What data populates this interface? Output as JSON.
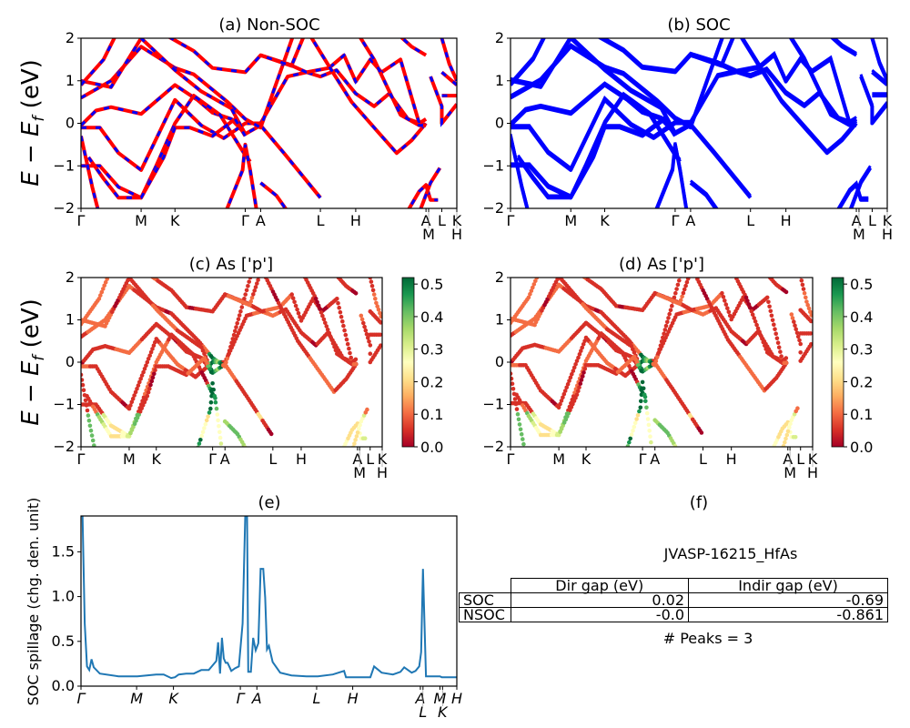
{
  "chart_data": [
    {
      "id": "a",
      "type": "line",
      "title": "(a) Non-SOC",
      "ylabel": "E − E_f (eV)",
      "ylim": [
        -2,
        2
      ],
      "yticks": [
        "−2",
        "−1",
        "0",
        "1",
        "2"
      ],
      "xticks": [
        {
          "label": "Γ",
          "k": 0
        },
        {
          "label": "M",
          "k": 0.16
        },
        {
          "label": "K",
          "k": 0.25
        },
        {
          "label": "Γ",
          "k": 0.437
        },
        {
          "label": "A",
          "k": 0.478
        },
        {
          "label": "L",
          "k": 0.637
        },
        {
          "label": "H",
          "k": 0.731
        },
        {
          "label": "A",
          "k": 0.918
        },
        {
          "label": "M",
          "k": 0.925
        },
        {
          "label": "L",
          "k": 0.96
        },
        {
          "label": "K",
          "k": 1.0
        },
        {
          "label": "H",
          "k": 1.0
        }
      ],
      "series": [
        {
          "name": "Non-SOC bands",
          "color": "#ff0000",
          "style": "solid"
        },
        {
          "name": "SOC bands",
          "color": "#0000ff",
          "style": "dashed"
        }
      ]
    },
    {
      "id": "b",
      "type": "line",
      "title": "(b) SOC",
      "ylim": [
        -2,
        2
      ],
      "yticks": [
        "−2",
        "−1",
        "0",
        "1",
        "2"
      ],
      "series": [
        {
          "name": "SOC bands",
          "color": "#0000ff",
          "style": "solid"
        }
      ]
    },
    {
      "id": "c",
      "type": "scatter",
      "title": "(c)  As ['p']",
      "ylabel": "E − E_f (eV)",
      "ylim": [
        -2,
        2
      ],
      "colorbar": {
        "cmap": "RdYlGn",
        "range": [
          0,
          0.5
        ],
        "ticks": [
          "0.0",
          "0.1",
          "0.2",
          "0.3",
          "0.4",
          "0.5"
        ]
      }
    },
    {
      "id": "d",
      "type": "scatter",
      "title": "(d) As ['p']",
      "ylim": [
        -2,
        2
      ],
      "colorbar": {
        "cmap": "RdYlGn",
        "range": [
          0,
          0.5
        ],
        "ticks": [
          "0.0",
          "0.1",
          "0.2",
          "0.3",
          "0.4",
          "0.5"
        ]
      }
    },
    {
      "id": "e",
      "type": "line",
      "title": "(e)",
      "ylabel": "SOC spillage (chg. den. unit)",
      "ylim": [
        0,
        1.9
      ],
      "yticks": [
        "0.0",
        "0.5",
        "1.0",
        "1.5"
      ],
      "xticks": [
        "Γ",
        "M",
        "K",
        "Γ",
        "A",
        "L",
        "H",
        "A",
        "L",
        "M",
        "K",
        "H"
      ],
      "color": "#1f77b4",
      "x": [
        0,
        0.004,
        0.01,
        0.016,
        0.022,
        0.028,
        0.034,
        0.05,
        0.1,
        0.15,
        0.2,
        0.22,
        0.24,
        0.25,
        0.26,
        0.28,
        0.3,
        0.32,
        0.34,
        0.36,
        0.365,
        0.37,
        0.375,
        0.38,
        0.385,
        0.39,
        0.4,
        0.41,
        0.42,
        0.43,
        0.437,
        0.442,
        0.445,
        0.452,
        0.458,
        0.465,
        0.472,
        0.478,
        0.485,
        0.49,
        0.495,
        0.5,
        0.51,
        0.53,
        0.56,
        0.6,
        0.63,
        0.67,
        0.7,
        0.705,
        0.72,
        0.75,
        0.77,
        0.78,
        0.8,
        0.83,
        0.85,
        0.86,
        0.88,
        0.89,
        0.9,
        0.905,
        0.91,
        0.918,
        0.925,
        0.94,
        0.955,
        0.96,
        0.97,
        0.985,
        1.0
      ],
      "y": [
        1.9,
        1.9,
        0.7,
        0.22,
        0.18,
        0.3,
        0.21,
        0.14,
        0.11,
        0.11,
        0.13,
        0.13,
        0.09,
        0.1,
        0.13,
        0.14,
        0.14,
        0.18,
        0.18,
        0.28,
        0.49,
        0.14,
        0.54,
        0.31,
        0.26,
        0.26,
        0.17,
        0.2,
        0.22,
        0.7,
        1.9,
        1.9,
        0.16,
        0.16,
        0.54,
        0.4,
        0.48,
        1.31,
        1.31,
        0.99,
        0.41,
        0.45,
        0.27,
        0.15,
        0.12,
        0.11,
        0.11,
        0.13,
        0.17,
        0.1,
        0.1,
        0.1,
        0.1,
        0.22,
        0.15,
        0.13,
        0.16,
        0.21,
        0.15,
        0.17,
        0.22,
        0.38,
        1.31,
        0.11,
        0.11,
        0.11,
        0.11,
        0.1,
        0.1,
        0.1,
        0.1
      ]
    }
  ],
  "panel_f": {
    "title": "(f)",
    "material": "JVASP-16215_HfAs",
    "table": {
      "headers": [
        "",
        "Dir gap (eV)",
        "Indir gap (eV)"
      ],
      "rows": [
        {
          "label": "SOC",
          "dir": "0.02",
          "indir": "-0.69"
        },
        {
          "label": "NSOC",
          "dir": "-0.0",
          "indir": "-0.861"
        }
      ]
    },
    "peaks_text": "# Peaks = 3"
  }
}
